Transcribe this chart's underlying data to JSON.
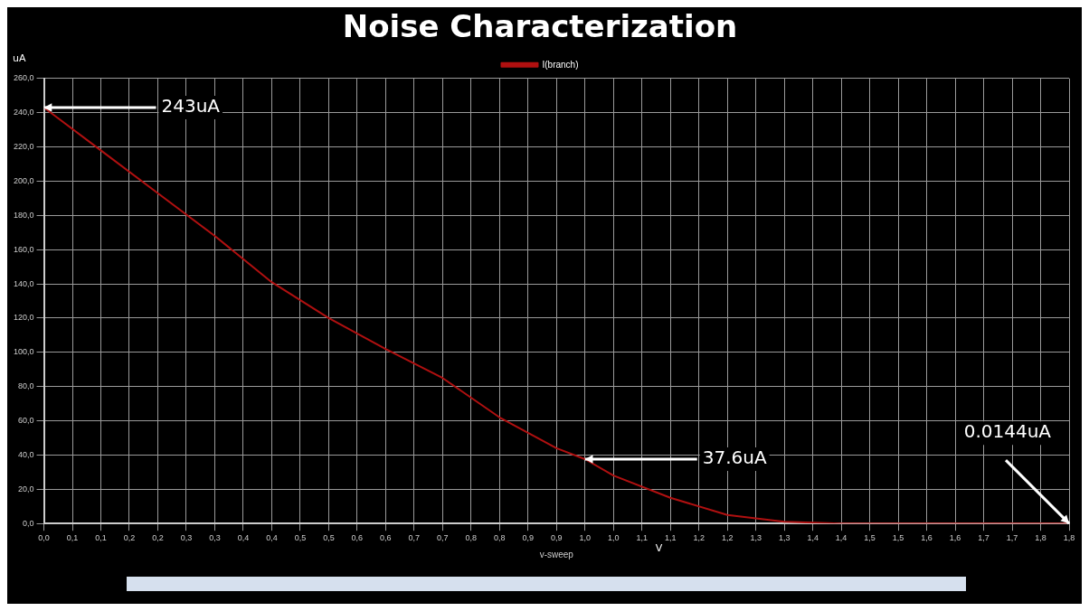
{
  "chart_data": {
    "type": "line",
    "title": "Noise Characterization",
    "xlabel": "v-sweep",
    "ylabel": "uA",
    "x": [
      0,
      0.1,
      0.2,
      0.3,
      0.4,
      0.5,
      0.6,
      0.7,
      0.8,
      0.9,
      0.95,
      1.0,
      1.1,
      1.2,
      1.3,
      1.4,
      1.8
    ],
    "series": [
      {
        "name": "I(branch)",
        "color": "#b01010",
        "values": [
          243,
          218,
          193,
          168,
          141,
          120,
          102,
          85,
          62,
          44,
          37.6,
          28,
          15,
          5,
          1,
          0,
          0.0144
        ]
      }
    ],
    "xlim": [
      0,
      1.8
    ],
    "xticks": [
      {
        "value": 0,
        "label": "0,0"
      },
      {
        "value": 0.05,
        "label": "0,1"
      },
      {
        "value": 0.1,
        "label": "0,1"
      },
      {
        "value": 0.15,
        "label": "0,2"
      },
      {
        "value": 0.2,
        "label": "0,2"
      },
      {
        "value": 0.25,
        "label": "0,3"
      },
      {
        "value": 0.3,
        "label": "0,3"
      },
      {
        "value": 0.35,
        "label": "0,4"
      },
      {
        "value": 0.4,
        "label": "0,4"
      },
      {
        "value": 0.45,
        "label": "0,5"
      },
      {
        "value": 0.5,
        "label": "0,5"
      },
      {
        "value": 0.55,
        "label": "0,6"
      },
      {
        "value": 0.6,
        "label": "0,6"
      },
      {
        "value": 0.65,
        "label": "0,7"
      },
      {
        "value": 0.7,
        "label": "0,7"
      },
      {
        "value": 0.75,
        "label": "0,8"
      },
      {
        "value": 0.8,
        "label": "0,8"
      },
      {
        "value": 0.85,
        "label": "0,9"
      },
      {
        "value": 0.9,
        "label": "0,9"
      },
      {
        "value": 0.95,
        "label": "1,0"
      },
      {
        "value": 1.0,
        "label": "1,0"
      },
      {
        "value": 1.05,
        "label": "1,1"
      },
      {
        "value": 1.1,
        "label": "1,1"
      },
      {
        "value": 1.15,
        "label": "1,2"
      },
      {
        "value": 1.2,
        "label": "1,2"
      },
      {
        "value": 1.25,
        "label": "1,3"
      },
      {
        "value": 1.3,
        "label": "1,3"
      },
      {
        "value": 1.35,
        "label": "1,4"
      },
      {
        "value": 1.4,
        "label": "1,4"
      },
      {
        "value": 1.45,
        "label": "1,5"
      },
      {
        "value": 1.5,
        "label": "1,5"
      },
      {
        "value": 1.55,
        "label": "1,6"
      },
      {
        "value": 1.6,
        "label": "1,6"
      },
      {
        "value": 1.65,
        "label": "1,7"
      },
      {
        "value": 1.7,
        "label": "1,7"
      },
      {
        "value": 1.75,
        "label": "1,8"
      },
      {
        "value": 1.8,
        "label": "1,8"
      }
    ],
    "ylim": [
      0,
      260
    ],
    "yticks": [
      {
        "value": 0,
        "label": "0,0"
      },
      {
        "value": 20,
        "label": "20,0"
      },
      {
        "value": 40,
        "label": "40,0"
      },
      {
        "value": 60,
        "label": "60,0"
      },
      {
        "value": 80,
        "label": "80,0"
      },
      {
        "value": 100,
        "label": "100,0"
      },
      {
        "value": 120,
        "label": "120,0"
      },
      {
        "value": 140,
        "label": "140,0"
      },
      {
        "value": 160,
        "label": "160,0"
      },
      {
        "value": 180,
        "label": "180,0"
      },
      {
        "value": 200,
        "label": "200,0"
      },
      {
        "value": 220,
        "label": "220,0"
      },
      {
        "value": 240,
        "label": "240,0"
      },
      {
        "value": 260,
        "label": "260,0"
      }
    ],
    "annotations": [
      {
        "text": "243uA",
        "x": 0,
        "y": 243
      },
      {
        "text": "37.6uA",
        "x": 0.95,
        "y": 37.6
      },
      {
        "text": "0.0144uA",
        "x": 1.8,
        "y": 0.0144
      },
      "V"
    ],
    "grid": true,
    "legend": "top",
    "marker": "none",
    "line_style": "solid"
  }
}
